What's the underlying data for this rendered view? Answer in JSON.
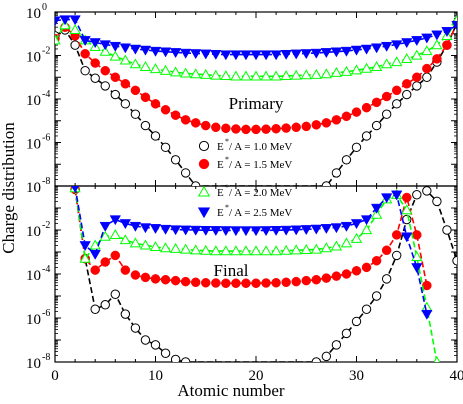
{
  "chart_data": {
    "type": "line",
    "xlabel": "Atomic number",
    "ylabel": "Charge distribution",
    "xlim": [
      0,
      40
    ],
    "xticks": [
      0,
      10,
      20,
      30,
      40
    ],
    "y_scale": "log",
    "legend_placement": "center",
    "legend_prefix": "E",
    "legend_sup": "*",
    "panels": [
      {
        "label": "Primary",
        "ylim": [
          1e-08,
          1
        ],
        "yticks": [
          {
            "mant": "10",
            "exp": "-8",
            "v": 1e-08
          },
          {
            "mant": "10",
            "exp": "-6",
            "v": 1e-06
          },
          {
            "mant": "10",
            "exp": "-4",
            "v": 0.0001
          },
          {
            "mant": "10",
            "exp": "-2",
            "v": 0.01
          },
          {
            "mant": "10",
            "exp": "0",
            "v": 1
          }
        ],
        "series": [
          {
            "name": " / A = 1.0 MeV",
            "color": "#000000",
            "marker": "circle-open",
            "x": [
              0,
              1,
              2,
              3,
              4,
              5,
              6,
              7,
              8,
              9,
              10,
              11,
              12,
              13,
              14,
              27,
              28,
              29,
              30,
              31,
              32,
              33,
              34,
              35,
              36,
              37,
              38,
              39,
              40
            ],
            "y": [
              0.08,
              0.15,
              0.03,
              0.002,
              0.0009,
              0.0004,
              0.00016,
              6e-05,
              2e-05,
              6e-06,
              2e-06,
              6e-07,
              1.6e-07,
              4e-08,
              1e-08,
              1e-08,
              4e-08,
              1.6e-07,
              6e-07,
              2e-06,
              6e-06,
              2e-05,
              6e-05,
              0.00016,
              0.0004,
              0.001,
              0.005,
              0.03,
              0.3
            ]
          },
          {
            "name": " / A = 1.5 MeV",
            "color": "#ff0000",
            "marker": "circle-filled",
            "x": [
              0,
              1,
              2,
              3,
              4,
              5,
              6,
              7,
              8,
              9,
              10,
              11,
              12,
              13,
              14,
              15,
              16,
              17,
              18,
              19,
              20,
              21,
              22,
              23,
              24,
              25,
              26,
              27,
              28,
              29,
              30,
              31,
              32,
              33,
              34,
              35,
              36,
              37,
              38,
              39,
              40
            ],
            "y": [
              0.06,
              0.2,
              0.08,
              0.012,
              0.0045,
              0.002,
              0.001,
              0.0005,
              0.00025,
              0.00012,
              6e-05,
              3.2e-05,
              1.8e-05,
              1.1e-05,
              8e-06,
              6e-06,
              5e-06,
              4.5e-06,
              4.2e-06,
              4e-06,
              4e-06,
              4.1e-06,
              4.3e-06,
              4.6e-06,
              5e-06,
              5.5e-06,
              6.5e-06,
              8e-06,
              1.1e-05,
              1.6e-05,
              2.5e-05,
              4e-05,
              7e-05,
              0.00013,
              0.00025,
              0.0005,
              0.001,
              0.0025,
              0.007,
              0.03,
              0.3
            ]
          },
          {
            "name": " / A = 2.0 MeV",
            "color": "#00ff00",
            "marker": "triangle-up-open",
            "x": [
              0,
              1,
              2,
              3,
              4,
              5,
              6,
              7,
              8,
              9,
              10,
              11,
              12,
              13,
              14,
              15,
              16,
              17,
              18,
              19,
              20,
              21,
              22,
              23,
              24,
              25,
              26,
              27,
              28,
              29,
              30,
              31,
              32,
              33,
              34,
              35,
              36,
              37,
              38,
              39,
              40
            ],
            "y": [
              0.05,
              0.25,
              0.15,
              0.05,
              0.025,
              0.015,
              0.009,
              0.006,
              0.004,
              0.003,
              0.0024,
              0.002,
              0.0017,
              0.0015,
              0.0014,
              0.0013,
              0.0012,
              0.00115,
              0.0011,
              0.0011,
              0.0011,
              0.0011,
              0.0011,
              0.00115,
              0.0012,
              0.00125,
              0.0013,
              0.0014,
              0.0016,
              0.0018,
              0.0021,
              0.0025,
              0.003,
              0.004,
              0.005,
              0.007,
              0.01,
              0.016,
              0.03,
              0.08,
              0.4
            ]
          },
          {
            "name": " / A = 2.5 MeV",
            "color": "#0000ff",
            "marker": "triangle-down-filled",
            "x": [
              0,
              1,
              2,
              3,
              4,
              5,
              6,
              7,
              8,
              9,
              10,
              11,
              12,
              13,
              14,
              15,
              16,
              17,
              18,
              19,
              20,
              21,
              22,
              23,
              24,
              25,
              26,
              27,
              28,
              29,
              30,
              31,
              32,
              33,
              34,
              35,
              36,
              37,
              38,
              39,
              40
            ],
            "y": [
              0.4,
              0.45,
              0.45,
              0.05,
              0.04,
              0.032,
              0.027,
              0.023,
              0.02,
              0.018,
              0.016,
              0.015,
              0.014,
              0.013,
              0.0125,
              0.012,
              0.0115,
              0.011,
              0.011,
              0.011,
              0.011,
              0.011,
              0.011,
              0.0115,
              0.012,
              0.0125,
              0.013,
              0.014,
              0.015,
              0.016,
              0.018,
              0.02,
              0.023,
              0.027,
              0.032,
              0.04,
              0.05,
              0.065,
              0.09,
              0.13,
              0.25
            ]
          }
        ]
      },
      {
        "label": "Final",
        "ylim": [
          1e-08,
          1
        ],
        "yticks": [
          {
            "mant": "10",
            "exp": "-8",
            "v": 1e-08
          },
          {
            "mant": "10",
            "exp": "-6",
            "v": 1e-06
          },
          {
            "mant": "10",
            "exp": "-4",
            "v": 0.0001
          },
          {
            "mant": "10",
            "exp": "-2",
            "v": 0.01
          }
        ],
        "series": [
          {
            "name": " / A = 1.0 MeV",
            "color": "#000000",
            "marker": "circle-open",
            "x": [
              2,
              3,
              4,
              5,
              6,
              7,
              8,
              9,
              10,
              11,
              12,
              13,
              26,
              27,
              28,
              29,
              30,
              31,
              32,
              33,
              34,
              35,
              36,
              37,
              38,
              39,
              40
            ],
            "y": [
              0.7,
              0.0005,
              2.5e-06,
              4e-06,
              1.2e-05,
              1.5e-06,
              3.5e-07,
              1e-07,
              6e-08,
              2.5e-08,
              1.3e-08,
              1e-08,
              1e-08,
              1.8e-08,
              6e-08,
              2e-07,
              7e-07,
              2.5e-06,
              1e-05,
              6e-05,
              0.0007,
              0.03,
              0.4,
              0.6,
              0.2,
              0.01,
              0.0004
            ]
          },
          {
            "name": " / A = 1.5 MeV",
            "color": "#ff0000",
            "marker": "circle-filled",
            "x": [
              2,
              3,
              4,
              5,
              6,
              7,
              8,
              9,
              10,
              11,
              12,
              13,
              14,
              15,
              16,
              17,
              18,
              19,
              20,
              21,
              22,
              23,
              24,
              25,
              26,
              27,
              28,
              29,
              30,
              31,
              32,
              33,
              34,
              35,
              36,
              37
            ],
            "y": [
              0.7,
              0.0005,
              0.00015,
              0.00035,
              0.0007,
              0.00015,
              9e-05,
              7e-05,
              6e-05,
              5.5e-05,
              5e-05,
              4.5e-05,
              4.2e-05,
              4e-05,
              3.9e-05,
              3.8e-05,
              3.8e-05,
              3.8e-05,
              3.8e-05,
              3.9e-05,
              4e-05,
              4.2e-05,
              4.5e-05,
              5e-05,
              5.5e-05,
              6.5e-05,
              8e-05,
              0.0001,
              0.00014,
              0.0002,
              0.0004,
              0.0012,
              0.006,
              0.3,
              0.006,
              3e-05
            ]
          },
          {
            "name": " / A = 2.0 MeV",
            "color": "#00ff00",
            "marker": "triangle-up-open",
            "x": [
              2,
              3,
              4,
              5,
              6,
              7,
              8,
              9,
              10,
              11,
              12,
              13,
              14,
              15,
              16,
              17,
              18,
              19,
              20,
              21,
              22,
              23,
              24,
              25,
              26,
              27,
              28,
              29,
              30,
              31,
              32,
              33,
              34,
              35,
              36,
              37,
              38
            ],
            "y": [
              0.8,
              0.0005,
              0.002,
              0.005,
              0.006,
              0.0035,
              0.0025,
              0.002,
              0.0017,
              0.0015,
              0.0014,
              0.0013,
              0.0012,
              0.00115,
              0.0011,
              0.0011,
              0.0011,
              0.0011,
              0.0011,
              0.0011,
              0.0011,
              0.00115,
              0.0012,
              0.00125,
              0.0013,
              0.0015,
              0.0018,
              0.0025,
              0.004,
              0.01,
              0.05,
              0.25,
              0.4,
              0.08,
              0.0006,
              3e-06,
              1e-08
            ]
          },
          {
            "name": " / A = 2.5 MeV",
            "color": "#0000ff",
            "marker": "triangle-down-filled",
            "x": [
              2,
              3,
              4,
              5,
              6,
              7,
              8,
              9,
              10,
              11,
              12,
              13,
              14,
              15,
              16,
              17,
              18,
              19,
              20,
              21,
              22,
              23,
              24,
              25,
              26,
              27,
              28,
              29,
              30,
              31,
              32,
              33,
              34,
              35,
              36,
              37
            ],
            "y": [
              0.9,
              0.002,
              0.0008,
              0.015,
              0.03,
              0.02,
              0.015,
              0.013,
              0.012,
              0.011,
              0.0105,
              0.0102,
              0.01,
              0.0098,
              0.0097,
              0.0096,
              0.0095,
              0.0095,
              0.0095,
              0.0096,
              0.0098,
              0.01,
              0.0103,
              0.0107,
              0.0112,
              0.012,
              0.013,
              0.015,
              0.02,
              0.03,
              0.1,
              0.3,
              0.4,
              0.005,
              0.0002,
              1.5e-06
            ]
          }
        ]
      }
    ]
  }
}
